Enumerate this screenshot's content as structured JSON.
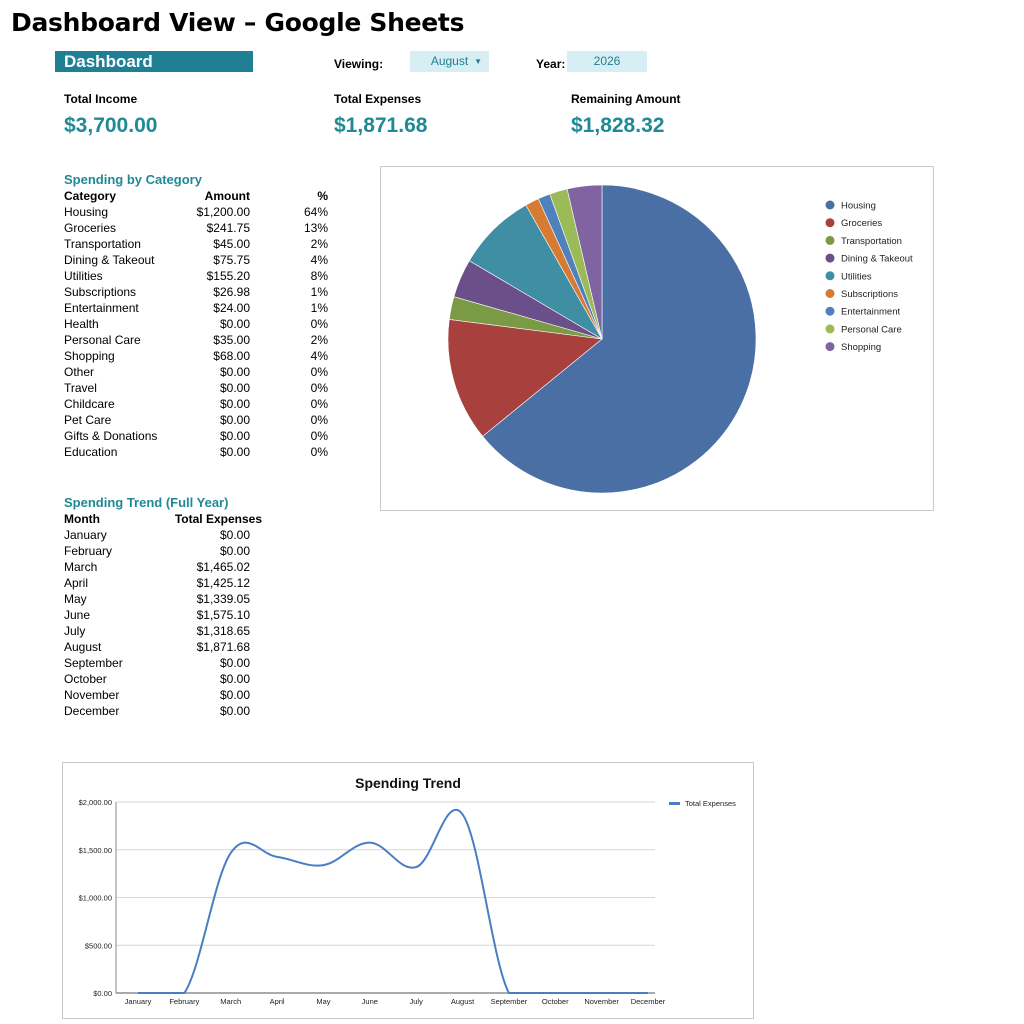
{
  "page_title": "Dashboard View – Google Sheets",
  "banner": "Dashboard",
  "viewing": {
    "label": "Viewing:",
    "value": "August"
  },
  "year": {
    "label": "Year:",
    "value": "2026"
  },
  "kpis": [
    {
      "label": "Total Income",
      "value": "$3,700.00"
    },
    {
      "label": "Total Expenses",
      "value": "$1,871.68"
    },
    {
      "label": "Remaining Amount",
      "value": "$1,828.32"
    }
  ],
  "category_section": {
    "title": "Spending by Category",
    "headers": [
      "Category",
      "Amount",
      "%"
    ],
    "rows": [
      [
        "Housing",
        "$1,200.00",
        "64%"
      ],
      [
        "Groceries",
        "$241.75",
        "13%"
      ],
      [
        "Transportation",
        "$45.00",
        "2%"
      ],
      [
        "Dining & Takeout",
        "$75.75",
        "4%"
      ],
      [
        "Utilities",
        "$155.20",
        "8%"
      ],
      [
        "Subscriptions",
        "$26.98",
        "1%"
      ],
      [
        "Entertainment",
        "$24.00",
        "1%"
      ],
      [
        "Health",
        "$0.00",
        "0%"
      ],
      [
        "Personal Care",
        "$35.00",
        "2%"
      ],
      [
        "Shopping",
        "$68.00",
        "4%"
      ],
      [
        "Other",
        "$0.00",
        "0%"
      ],
      [
        "Travel",
        "$0.00",
        "0%"
      ],
      [
        "Childcare",
        "$0.00",
        "0%"
      ],
      [
        "Pet Care",
        "$0.00",
        "0%"
      ],
      [
        "Gifts & Donations",
        "$0.00",
        "0%"
      ],
      [
        "Education",
        "$0.00",
        "0%"
      ]
    ]
  },
  "trend_section": {
    "title": "Spending Trend (Full Year)",
    "headers": [
      "Month",
      "Total Expenses"
    ],
    "rows": [
      [
        "January",
        "$0.00"
      ],
      [
        "February",
        "$0.00"
      ],
      [
        "March",
        "$1,465.02"
      ],
      [
        "April",
        "$1,425.12"
      ],
      [
        "May",
        "$1,339.05"
      ],
      [
        "June",
        "$1,575.10"
      ],
      [
        "July",
        "$1,318.65"
      ],
      [
        "August",
        "$1,871.68"
      ],
      [
        "September",
        "$0.00"
      ],
      [
        "October",
        "$0.00"
      ],
      [
        "November",
        "$0.00"
      ],
      [
        "December",
        "$0.00"
      ]
    ]
  },
  "chart_data": [
    {
      "type": "pie",
      "title": "",
      "legend_position": "right",
      "categories": [
        "Housing",
        "Groceries",
        "Transportation",
        "Dining & Takeout",
        "Utilities",
        "Subscriptions",
        "Entertainment",
        "Personal Care",
        "Shopping"
      ],
      "values": [
        1200.0,
        241.75,
        45.0,
        75.75,
        155.2,
        26.98,
        24.0,
        35.0,
        68.0
      ],
      "colors": [
        "#4a6fa5",
        "#a8403d",
        "#7a9a45",
        "#6a4f8a",
        "#3f8ea3",
        "#d77b34",
        "#4f81bd",
        "#9bbb59",
        "#8064a2"
      ]
    },
    {
      "type": "line",
      "title": "Spending Trend",
      "categories": [
        "January",
        "February",
        "March",
        "April",
        "May",
        "June",
        "July",
        "August",
        "September",
        "October",
        "November",
        "December"
      ],
      "series": [
        {
          "name": "Total Expenses",
          "values": [
            0,
            0,
            1465.02,
            1425.12,
            1339.05,
            1575.1,
            1318.65,
            1871.68,
            0,
            0,
            0,
            0
          ]
        }
      ],
      "ylim": [
        0,
        2000
      ],
      "yticks": [
        "$0.00",
        "$500.00",
        "$1,000.00",
        "$1,500.00",
        "$2,000.00"
      ],
      "grid": true,
      "legend_position": "top-right",
      "line_color": "#4a7ec2"
    }
  ]
}
